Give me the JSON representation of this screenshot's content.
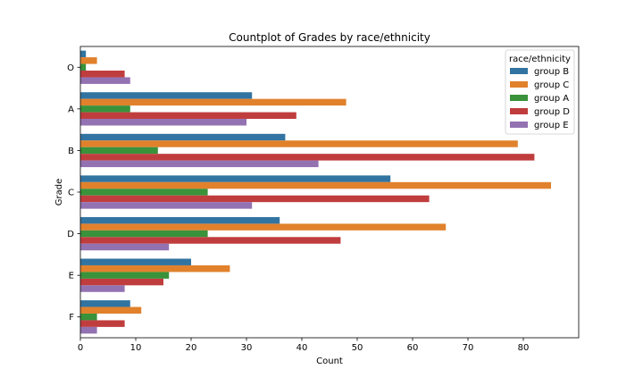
{
  "chart_data": {
    "type": "bar",
    "orientation": "horizontal",
    "title": "Countplot of Grades by race/ethnicity",
    "xlabel": "Count",
    "ylabel": "Grade",
    "categories": [
      "O",
      "A",
      "B",
      "C",
      "D",
      "E",
      "F"
    ],
    "xlim": [
      0,
      90
    ],
    "xticks": [
      0,
      10,
      20,
      30,
      40,
      50,
      60,
      70,
      80
    ],
    "grid": false,
    "legend": {
      "title": "race/ethnicity",
      "placement": "top-right"
    },
    "series": [
      {
        "name": "group B",
        "color": "#3274a1",
        "values": [
          1,
          31,
          37,
          56,
          36,
          20,
          9
        ]
      },
      {
        "name": "group C",
        "color": "#e1812c",
        "values": [
          3,
          48,
          79,
          85,
          66,
          27,
          11
        ]
      },
      {
        "name": "group A",
        "color": "#3a923a",
        "values": [
          1,
          9,
          14,
          23,
          23,
          16,
          3
        ]
      },
      {
        "name": "group D",
        "color": "#c03d3e",
        "values": [
          8,
          39,
          82,
          63,
          47,
          15,
          8
        ]
      },
      {
        "name": "group E",
        "color": "#9372b2",
        "values": [
          9,
          30,
          43,
          31,
          16,
          8,
          3
        ]
      }
    ]
  }
}
